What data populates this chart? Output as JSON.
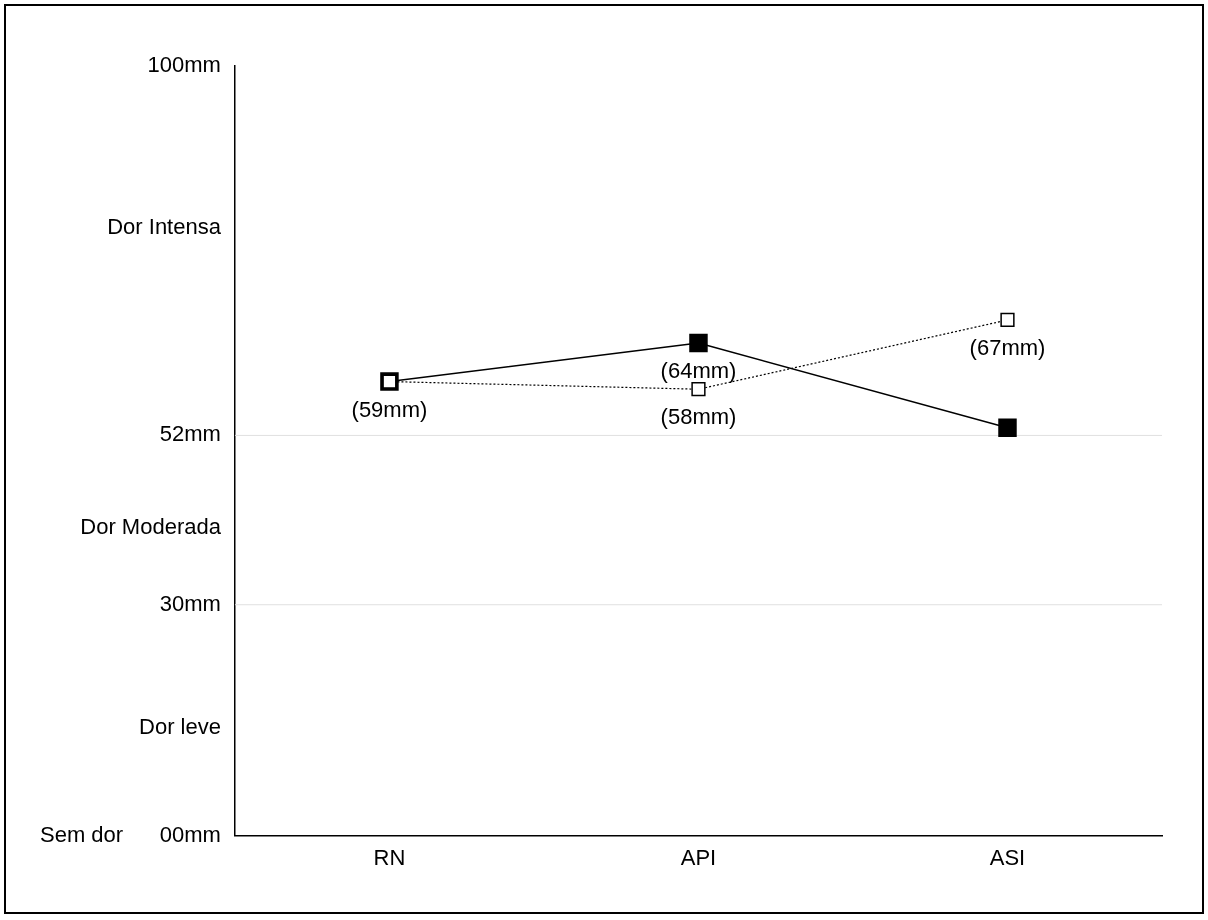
{
  "chart_data": {
    "type": "line",
    "categories": [
      "RN",
      "API",
      "ASI"
    ],
    "series": [
      {
        "color": "#000000",
        "line_style": "solid",
        "marker": "square",
        "values": [
          59,
          64,
          53
        ],
        "value_labels": [
          "(59mm)",
          "(64mm)",
          null
        ]
      },
      {
        "color": "#000000",
        "line_style": "dotted",
        "marker": "square",
        "values": [
          59,
          58,
          67
        ],
        "value_labels": [
          null,
          "(58mm)",
          "(67mm)"
        ]
      }
    ],
    "ylim": [
      0,
      100
    ],
    "yticks": [
      {
        "value": 0,
        "label": "Sem dor      00mm"
      },
      {
        "value": 14,
        "label": "Dor leve"
      },
      {
        "value": 30,
        "label": "30mm"
      },
      {
        "value": 40,
        "label": "Dor Moderada"
      },
      {
        "value": 52,
        "label": "52mm"
      },
      {
        "value": 79,
        "label": "Dor Intensa"
      },
      {
        "value": 100,
        "label": "100mm"
      }
    ],
    "ref_lines": [
      {
        "axis": "y",
        "value": 30,
        "color": "#e0e0e0"
      },
      {
        "axis": "y",
        "value": 52,
        "color": "#e0e0e0"
      }
    ],
    "grid": false,
    "legend": false
  }
}
